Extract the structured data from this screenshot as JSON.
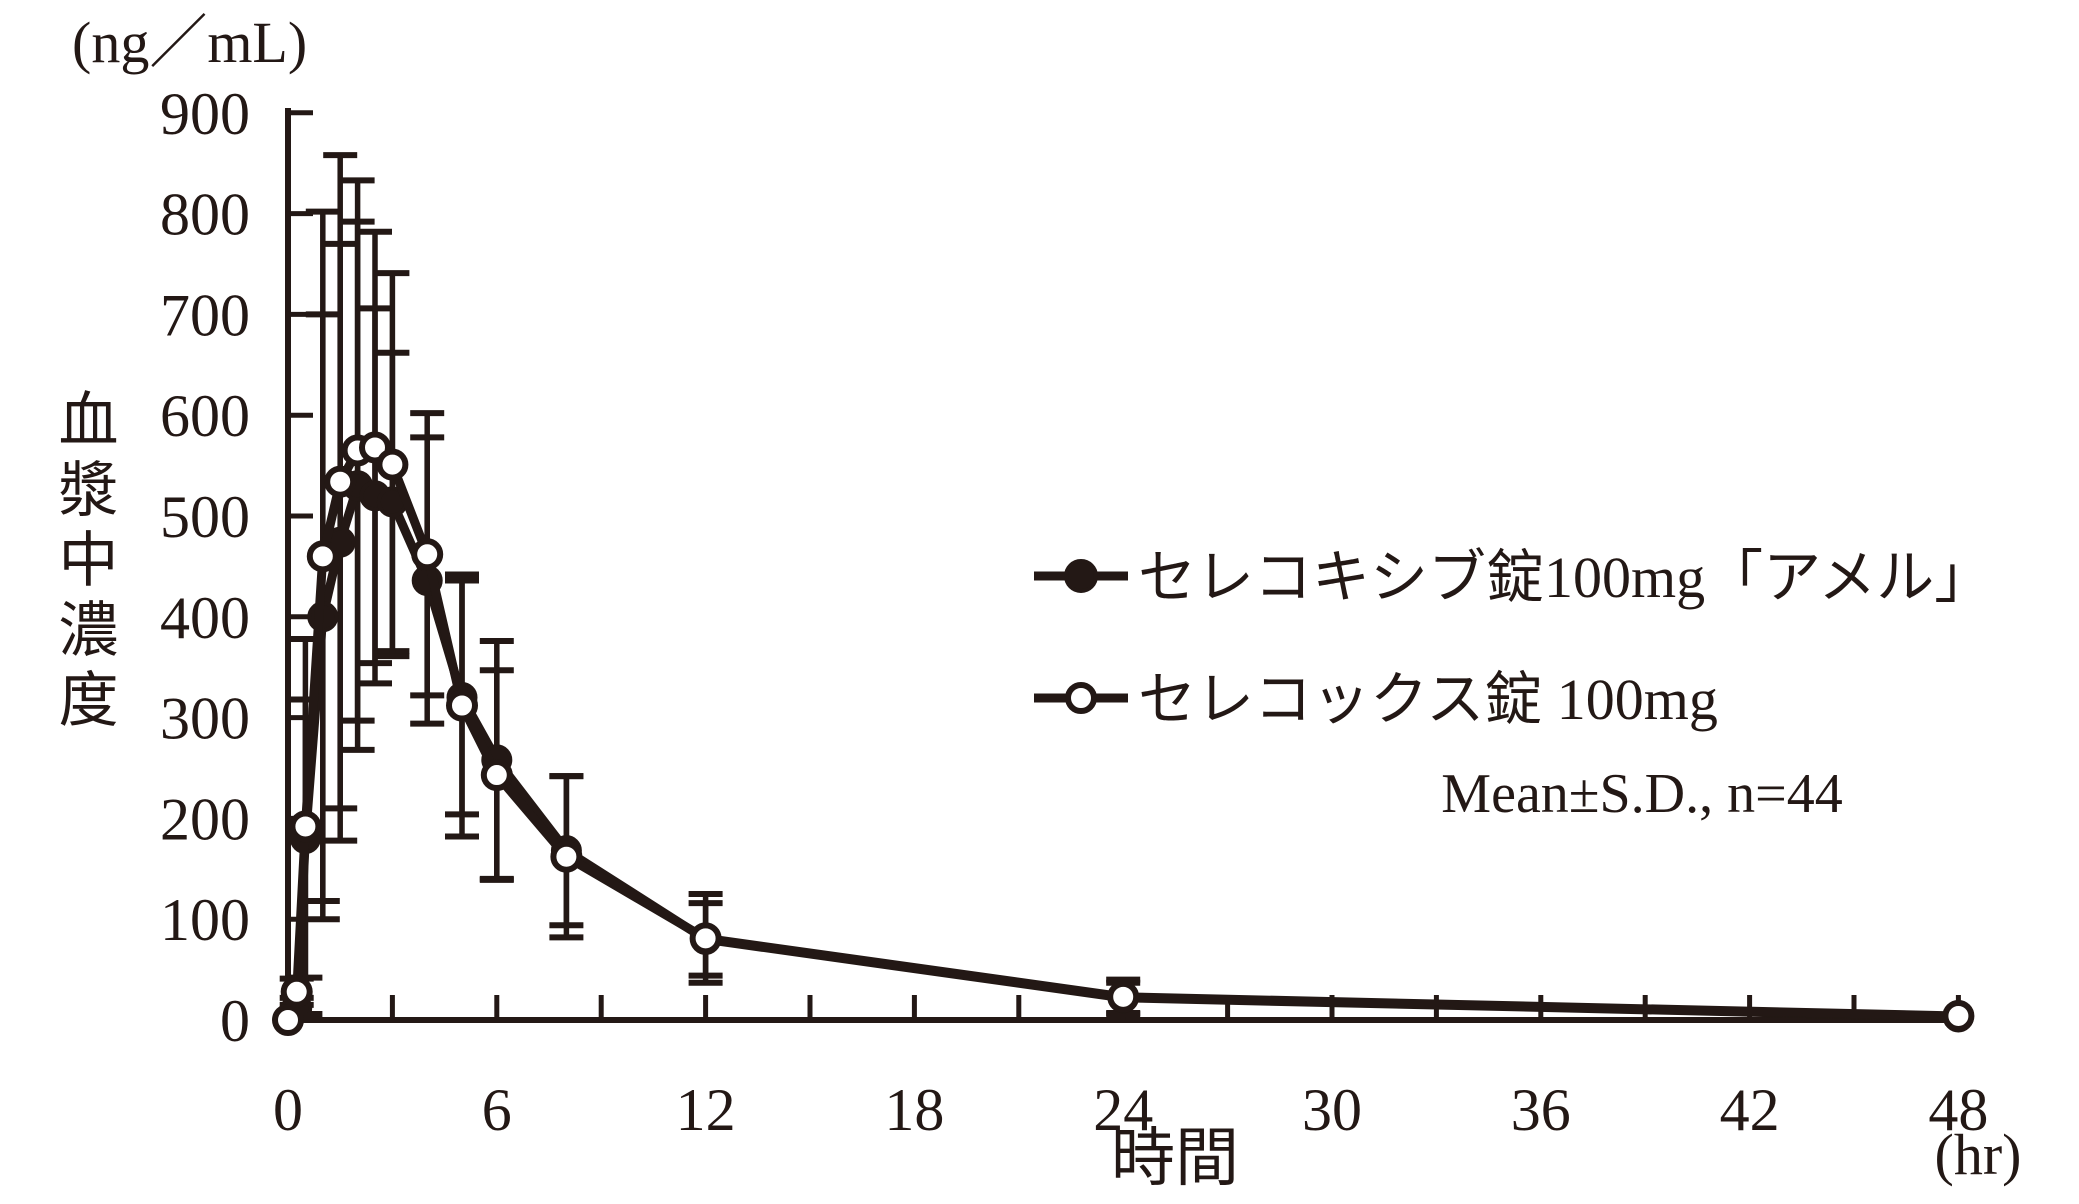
{
  "style": {
    "ink": "#231815",
    "background": "#ffffff"
  },
  "legend": {
    "annotation": "Mean±S.D., n=44"
  },
  "chart_data": {
    "type": "line",
    "title": "",
    "xlabel": "時間",
    "xlabel_unit": "(hr)",
    "ylabel": "血漿中濃度",
    "ylabel_unit": "(ng／mL)",
    "error_bars": "±S.D.",
    "n": 44,
    "grid": false,
    "legend_position": "right-middle",
    "xlim": [
      0,
      48
    ],
    "ylim": [
      0,
      900
    ],
    "xticks_major": [
      0,
      6,
      12,
      18,
      24,
      30,
      36,
      42,
      48
    ],
    "xtick_minor_step": 3,
    "yticks": [
      0,
      100,
      200,
      300,
      400,
      500,
      600,
      700,
      800,
      900
    ],
    "x": [
      0,
      0.25,
      0.5,
      1,
      1.5,
      2,
      2.5,
      3,
      4,
      5,
      6,
      8,
      12,
      24,
      48
    ],
    "series": [
      {
        "name": "セレコキシブ錠100mg「アメル」",
        "marker": "filled-circle",
        "values": [
          0,
          12,
          180,
          400,
          474,
          530,
          520,
          514,
          436,
          320,
          258,
          168,
          80,
          22,
          3
        ],
        "sd": [
          0,
          10,
          138,
          300,
          296,
          262,
          186,
          148,
          142,
          116,
          118,
          74,
          36,
          15,
          0
        ]
      },
      {
        "name": "セレコックス錠 100mg",
        "marker": "open-circle",
        "values": [
          0,
          28,
          192,
          460,
          534,
          565,
          568,
          551,
          462,
          312,
          243,
          162,
          81,
          23,
          4
        ],
        "sd": [
          0,
          13,
          186,
          342,
          324,
          268,
          214,
          190,
          140,
          130,
          104,
          80,
          44,
          17,
          0
        ]
      }
    ]
  }
}
